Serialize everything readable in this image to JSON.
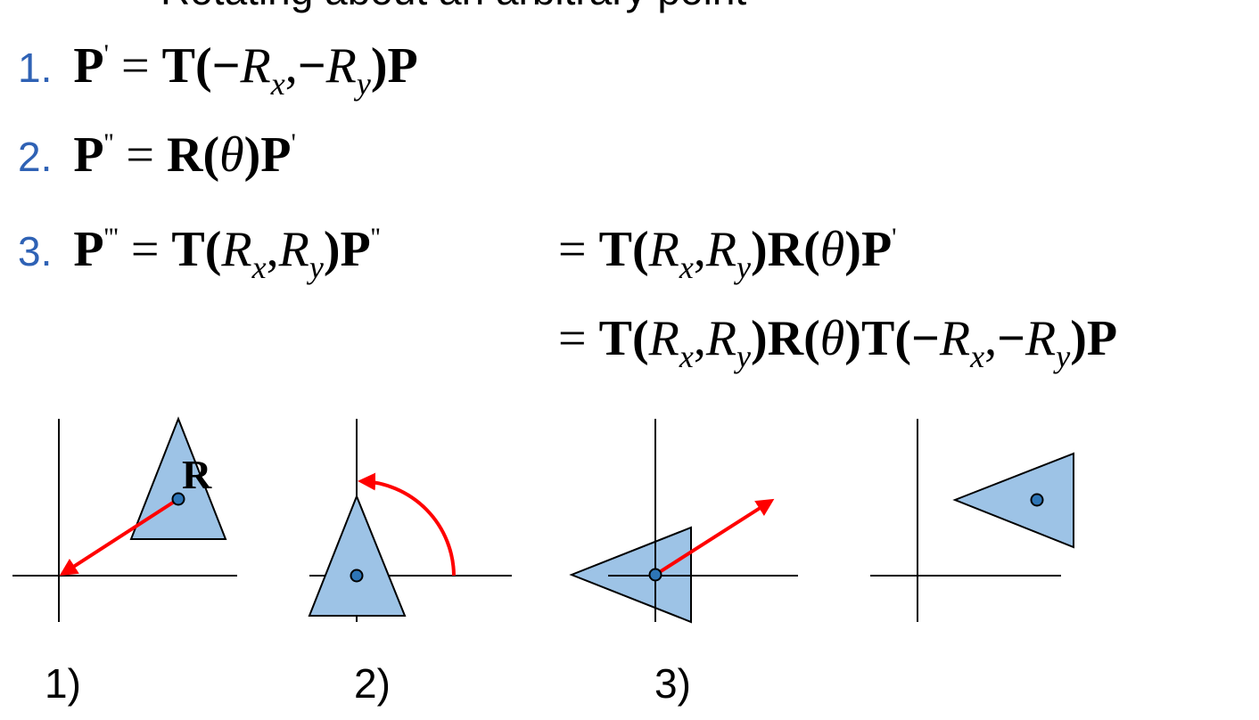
{
  "title_partial": "Rotating about an arbitrary point",
  "steps": [
    {
      "number": "1.",
      "lhs_base": "P",
      "lhs_prime": "'",
      "eq": "=",
      "T": "T",
      "open": "(",
      "neg": "−",
      "R": "R",
      "sx": "x",
      "comma": ",",
      "sy": "y",
      "close": ")",
      "P": "P"
    },
    {
      "number": "2.",
      "lhs_base": "P",
      "lhs_prime": "''",
      "eq": "=",
      "R": "R",
      "open": "(",
      "theta": "θ",
      "close": ")",
      "P": "P",
      "P_prime": "'"
    },
    {
      "number": "3.",
      "lhs_base": "P",
      "lhs_prime": "'''",
      "eq": "=",
      "T": "T",
      "R": "R",
      "sx": "x",
      "sy": "y",
      "comma": ",",
      "open": "(",
      "close": ")",
      "P": "P",
      "P_prime": "''"
    }
  ],
  "continuation": {
    "line1": {
      "eq": "=",
      "prime": "'"
    },
    "line2": {
      "eq": "=",
      "neg": "−"
    }
  },
  "point_label": "R",
  "panels": [
    {
      "label": "1)"
    },
    {
      "label": "2)"
    },
    {
      "label": "3)"
    },
    {
      "label": ""
    }
  ],
  "colors": {
    "step_number": "#2f62b5",
    "triangle_fill": "#9dc3e6",
    "arrow": "#ff0000",
    "point_fill": "#2e75b6"
  }
}
